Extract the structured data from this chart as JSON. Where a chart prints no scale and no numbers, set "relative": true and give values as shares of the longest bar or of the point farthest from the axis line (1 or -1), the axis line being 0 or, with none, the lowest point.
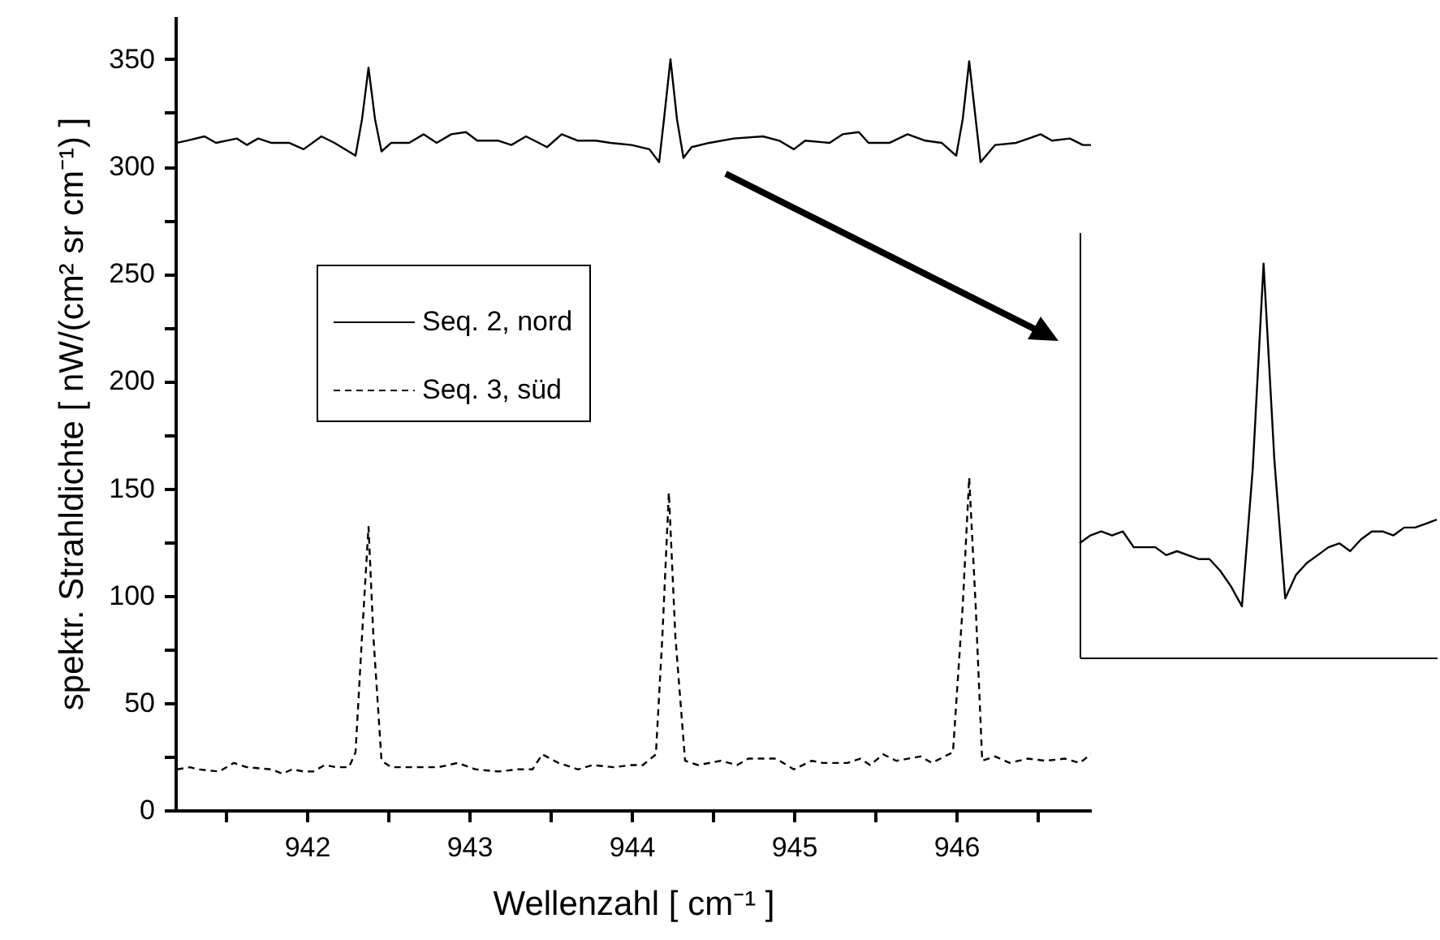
{
  "chart_data": [
    {
      "type": "line",
      "xlabel": "Wellenzahl [ cm⁻¹ ]",
      "ylabel": "spektr. Strahldichte [ nW/(cm² sr cm⁻¹) ]",
      "xlim": [
        941.19,
        946.83
      ],
      "ylim": [
        0,
        370
      ],
      "xticks": [
        {
          "value": 941.5,
          "label": null
        },
        942,
        {
          "value": 942.5,
          "label": null
        },
        943,
        {
          "value": 943.5,
          "label": null
        },
        944,
        {
          "value": 944.5,
          "label": null
        },
        945,
        {
          "value": 945.5,
          "label": null
        },
        946,
        {
          "value": 946.5,
          "label": null
        }
      ],
      "yticks": [
        0,
        {
          "value": 25,
          "label": null
        },
        50,
        {
          "value": 75,
          "label": null
        },
        100,
        {
          "value": 125,
          "label": null
        },
        150,
        {
          "value": 175,
          "label": null
        },
        200,
        {
          "value": 225,
          "label": null
        },
        250,
        {
          "value": 275,
          "label": null
        },
        300,
        {
          "value": 325,
          "label": null
        },
        350
      ],
      "legend": "top left",
      "series": [
        {
          "name": "Seq. 2, nord",
          "color": "#000000",
          "line_style": "solid",
          "x": [
            941.2,
            941.26,
            941.37,
            941.44,
            941.57,
            941.63,
            941.7,
            941.78,
            941.89,
            941.98,
            942.09,
            942.17,
            942.3,
            942.34,
            942.38,
            942.42,
            942.46,
            942.52,
            942.63,
            942.72,
            942.8,
            942.89,
            942.98,
            943.05,
            943.18,
            943.26,
            943.35,
            943.48,
            943.57,
            943.67,
            943.78,
            943.87,
            944.0,
            944.11,
            944.17,
            944.2,
            944.24,
            944.28,
            944.32,
            944.37,
            944.48,
            944.63,
            944.81,
            944.91,
            945.0,
            945.07,
            945.22,
            945.3,
            945.4,
            945.46,
            945.59,
            945.7,
            945.81,
            945.91,
            946.0,
            946.04,
            946.08,
            946.12,
            946.15,
            946.24,
            946.37,
            946.52,
            946.59,
            946.7,
            946.78,
            946.83
          ],
          "values": [
            311,
            312,
            314,
            311,
            313,
            310,
            313,
            311,
            311,
            308,
            314,
            311,
            305,
            322,
            346,
            322,
            307,
            311,
            311,
            315,
            311,
            315,
            316,
            312,
            312,
            310,
            314,
            309,
            315,
            312,
            312,
            311,
            310,
            308,
            302,
            322,
            350,
            322,
            304,
            309,
            311,
            313,
            314,
            312,
            308,
            312,
            311,
            315,
            316,
            311,
            311,
            315,
            312,
            311,
            305,
            322,
            349,
            322,
            302,
            310,
            311,
            315,
            312,
            313,
            310,
            310
          ]
        },
        {
          "name": "Seq. 3, süd",
          "color": "#000000",
          "line_style": "dashed",
          "x": [
            941.2,
            941.28,
            941.33,
            941.46,
            941.55,
            941.63,
            941.78,
            941.85,
            941.91,
            941.98,
            942.04,
            942.11,
            942.18,
            942.26,
            942.3,
            942.34,
            942.38,
            942.41,
            942.46,
            942.52,
            942.67,
            942.81,
            942.93,
            943.04,
            943.18,
            943.3,
            943.39,
            943.45,
            943.55,
            943.67,
            943.76,
            943.89,
            944.0,
            944.07,
            944.15,
            944.19,
            944.23,
            944.27,
            944.33,
            944.41,
            944.55,
            944.65,
            944.72,
            944.89,
            945.0,
            945.11,
            945.18,
            945.33,
            945.41,
            945.47,
            945.55,
            945.63,
            945.78,
            945.85,
            945.98,
            946.04,
            946.08,
            946.12,
            946.16,
            946.24,
            946.33,
            946.44,
            946.55,
            946.67,
            946.76,
            946.83
          ],
          "values": [
            19,
            20,
            19,
            18,
            22,
            20,
            19,
            17,
            19,
            18,
            18,
            21,
            20,
            20,
            27,
            81,
            132,
            81,
            23,
            20,
            20,
            20,
            22,
            19,
            18,
            19,
            19,
            26,
            22,
            19,
            21,
            20,
            21,
            21,
            26,
            81,
            148,
            81,
            23,
            21,
            23,
            21,
            24,
            24,
            19,
            23,
            22,
            22,
            24,
            21,
            26,
            23,
            25,
            22,
            27,
            95,
            155,
            95,
            23,
            25,
            22,
            24,
            23,
            24,
            22,
            26
          ]
        }
      ]
    },
    {
      "type": "line",
      "relative": true,
      "categories": [
        null,
        null,
        null,
        null,
        null,
        null,
        null,
        null,
        null,
        null,
        null,
        null,
        null,
        null,
        null,
        null,
        null,
        null,
        null,
        null,
        null,
        null,
        null,
        null,
        null,
        null,
        null,
        null,
        null,
        null,
        null,
        null,
        null,
        null
      ],
      "series": [
        {
          "color": "#000000",
          "values": [
            0.29,
            0.31,
            0.32,
            0.31,
            0.32,
            0.28,
            0.28,
            0.28,
            0.26,
            0.27,
            0.26,
            0.25,
            0.25,
            0.22,
            0.18,
            0.13,
            0.48,
            1,
            0.5,
            0.15,
            0.21,
            0.24,
            0.26,
            0.28,
            0.29,
            0.27,
            0.3,
            0.32,
            0.32,
            0.31,
            0.33,
            0.33,
            0.34,
            0.35
          ]
        }
      ]
    }
  ]
}
